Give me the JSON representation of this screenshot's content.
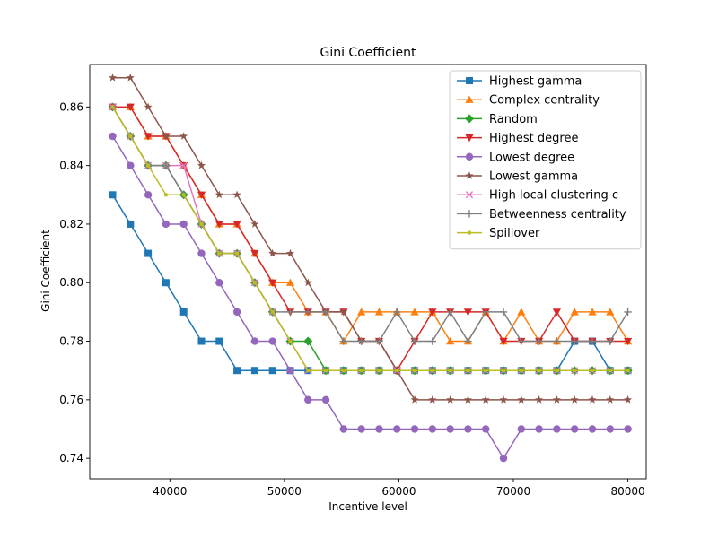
{
  "chart_data": {
    "type": "line",
    "title": "Gini Coefficient",
    "xlabel": "Incentive level",
    "ylabel": "Gini Coefficient",
    "xlim": [
      33000,
      81600
    ],
    "ylim": [
      0.733,
      0.8745
    ],
    "xticks": [
      40000,
      50000,
      60000,
      70000,
      80000
    ],
    "xtick_labels": [
      "40000",
      "50000",
      "60000",
      "70000",
      "80000"
    ],
    "yticks": [
      0.74,
      0.76,
      0.78,
      0.8,
      0.82,
      0.84,
      0.86
    ],
    "ytick_labels": [
      "0.74",
      "0.76",
      "0.78",
      "0.80",
      "0.82",
      "0.84",
      "0.86"
    ],
    "grid": false,
    "legend_position": "top-right",
    "x": [
      35000,
      36551.72,
      38103.45,
      39655.17,
      41206.9,
      42758.62,
      44310.34,
      45862.07,
      47413.79,
      48965.52,
      50517.24,
      52068.97,
      53620.69,
      55172.41,
      56724.14,
      58275.86,
      59827.59,
      61379.31,
      62931.03,
      64482.76,
      66034.48,
      67586.21,
      69137.93,
      70689.66,
      72241.38,
      73793.1,
      75344.83,
      76896.55,
      78448.28,
      80000
    ],
    "series": [
      {
        "name": "Highest gamma",
        "color": "#1f77b4",
        "marker": "square",
        "values": [
          0.83,
          0.82,
          0.81,
          0.8,
          0.79,
          0.78,
          0.78,
          0.77,
          0.77,
          0.77,
          0.77,
          0.77,
          0.77,
          0.77,
          0.77,
          0.77,
          0.77,
          0.77,
          0.77,
          0.77,
          0.77,
          0.77,
          0.77,
          0.77,
          0.77,
          0.77,
          0.78,
          0.78,
          0.77,
          0.77
        ]
      },
      {
        "name": "Complex centrality",
        "color": "#ff7f0e",
        "marker": "triangle-up",
        "values": [
          0.86,
          0.86,
          0.85,
          0.85,
          0.84,
          0.83,
          0.82,
          0.82,
          0.81,
          0.8,
          0.8,
          0.79,
          0.79,
          0.78,
          0.79,
          0.79,
          0.79,
          0.79,
          0.79,
          0.78,
          0.78,
          0.79,
          0.78,
          0.79,
          0.78,
          0.78,
          0.79,
          0.79,
          0.79,
          0.78
        ]
      },
      {
        "name": "Random",
        "color": "#2ca02c",
        "marker": "diamond",
        "values": [
          0.86,
          0.85,
          0.84,
          0.84,
          0.83,
          0.82,
          0.81,
          0.81,
          0.8,
          0.79,
          0.78,
          0.78,
          0.77,
          0.77,
          0.77,
          0.77,
          0.77,
          0.77,
          0.77,
          0.77,
          0.77,
          0.77,
          0.77,
          0.77,
          0.77,
          0.77,
          0.77,
          0.77,
          0.77,
          0.77
        ]
      },
      {
        "name": "Highest degree",
        "color": "#d62728",
        "marker": "triangle-down",
        "values": [
          0.86,
          0.86,
          0.85,
          0.85,
          0.84,
          0.83,
          0.82,
          0.82,
          0.81,
          0.8,
          0.79,
          0.79,
          0.79,
          0.79,
          0.78,
          0.78,
          0.77,
          0.78,
          0.79,
          0.79,
          0.79,
          0.79,
          0.78,
          0.78,
          0.78,
          0.79,
          0.78,
          0.78,
          0.78,
          0.78
        ]
      },
      {
        "name": "Lowest degree",
        "color": "#9467bd",
        "marker": "circle",
        "values": [
          0.85,
          0.84,
          0.83,
          0.82,
          0.82,
          0.81,
          0.8,
          0.79,
          0.78,
          0.78,
          0.77,
          0.76,
          0.76,
          0.75,
          0.75,
          0.75,
          0.75,
          0.75,
          0.75,
          0.75,
          0.75,
          0.75,
          0.74,
          0.75,
          0.75,
          0.75,
          0.75,
          0.75,
          0.75,
          0.75
        ]
      },
      {
        "name": "Lowest gamma",
        "color": "#8c564b",
        "marker": "star",
        "values": [
          0.87,
          0.87,
          0.86,
          0.85,
          0.85,
          0.84,
          0.83,
          0.83,
          0.82,
          0.81,
          0.81,
          0.8,
          0.79,
          0.79,
          0.78,
          0.78,
          0.77,
          0.76,
          0.76,
          0.76,
          0.76,
          0.76,
          0.76,
          0.76,
          0.76,
          0.76,
          0.76,
          0.76,
          0.76,
          0.76
        ]
      },
      {
        "name": "High local clustering c",
        "color": "#e377c2",
        "marker": "x",
        "values": [
          0.86,
          0.85,
          0.84,
          0.84,
          0.84,
          0.82,
          0.81,
          0.81,
          0.8,
          0.79,
          0.78,
          0.77,
          0.77,
          0.77,
          0.77,
          0.77,
          0.77,
          0.77,
          0.77,
          0.77,
          0.77,
          0.77,
          0.77,
          0.77,
          0.77,
          0.77,
          0.77,
          0.77,
          0.77,
          0.77
        ]
      },
      {
        "name": "Betweenness centrality",
        "color": "#7f7f7f",
        "marker": "plus",
        "values": [
          0.86,
          0.85,
          0.84,
          0.84,
          0.83,
          0.82,
          0.81,
          0.81,
          0.8,
          0.79,
          0.79,
          0.79,
          0.79,
          0.78,
          0.78,
          0.78,
          0.79,
          0.78,
          0.78,
          0.79,
          0.78,
          0.79,
          0.79,
          0.78,
          0.78,
          0.78,
          0.78,
          0.78,
          0.78,
          0.79
        ]
      },
      {
        "name": "Spillover",
        "color": "#bcbd22",
        "marker": "point",
        "values": [
          0.86,
          0.85,
          0.84,
          0.83,
          0.83,
          0.82,
          0.81,
          0.81,
          0.8,
          0.79,
          0.78,
          0.77,
          0.77,
          0.77,
          0.77,
          0.77,
          0.77,
          0.77,
          0.77,
          0.77,
          0.77,
          0.77,
          0.77,
          0.77,
          0.77,
          0.77,
          0.77,
          0.77,
          0.77,
          0.77
        ]
      }
    ]
  }
}
